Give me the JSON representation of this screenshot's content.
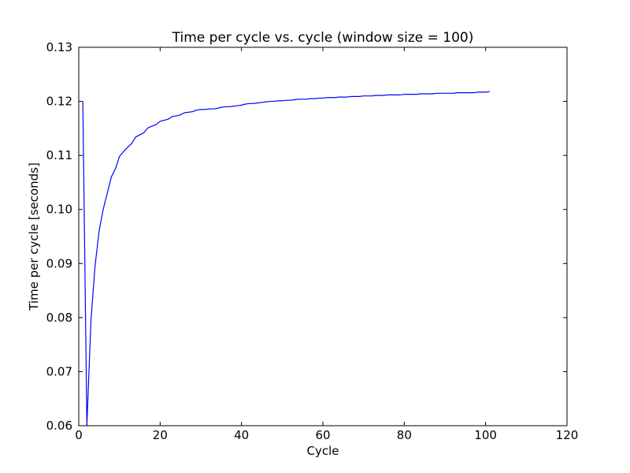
{
  "chart_data": {
    "type": "line",
    "title": "Time per cycle vs. cycle (window size = 100)",
    "xlabel": "Cycle",
    "ylabel": "Time per cycle [seconds]",
    "xlim": [
      0,
      120
    ],
    "ylim": [
      0.06,
      0.13
    ],
    "xticks": [
      0,
      20,
      40,
      60,
      80,
      100,
      120
    ],
    "yticks": [
      0.06,
      0.07,
      0.08,
      0.09,
      0.1,
      0.11,
      0.12,
      0.13
    ],
    "xtick_labels": [
      "0",
      "20",
      "40",
      "60",
      "80",
      "100",
      "120"
    ],
    "ytick_labels": [
      "0.06",
      "0.07",
      "0.08",
      "0.09",
      "0.10",
      "0.11",
      "0.12",
      "0.13"
    ],
    "grid": false,
    "line_color": "#0000ff",
    "series": [
      {
        "x": [
          1,
          2,
          3,
          4,
          5,
          6,
          7,
          8,
          9,
          10,
          11,
          12,
          13,
          14,
          15,
          16,
          17,
          18,
          19,
          20,
          21,
          22,
          23,
          24,
          25,
          26,
          27,
          28,
          29,
          30,
          31,
          32,
          33,
          34,
          35,
          36,
          37,
          38,
          39,
          40,
          41,
          42,
          43,
          44,
          45,
          46,
          47,
          48,
          49,
          50,
          51,
          52,
          53,
          54,
          55,
          56,
          57,
          58,
          59,
          60,
          61,
          62,
          63,
          64,
          65,
          66,
          67,
          68,
          69,
          70,
          71,
          72,
          73,
          74,
          75,
          76,
          77,
          78,
          79,
          80,
          81,
          82,
          83,
          84,
          85,
          86,
          87,
          88,
          89,
          90,
          91,
          92,
          93,
          94,
          95,
          96,
          97,
          98,
          99,
          100,
          101
        ],
        "values": [
          0.12,
          0.0595,
          0.0795,
          0.0895,
          0.096,
          0.1,
          0.103,
          0.106,
          0.1075,
          0.1098,
          0.1107,
          0.1115,
          0.1122,
          0.1134,
          0.1138,
          0.1142,
          0.1151,
          0.1154,
          0.1157,
          0.1163,
          0.1165,
          0.1167,
          0.1172,
          0.1173,
          0.1175,
          0.1179,
          0.118,
          0.1181,
          0.1184,
          0.1185,
          0.1185,
          0.1186,
          0.1186,
          0.1187,
          0.1189,
          0.119,
          0.119,
          0.1191,
          0.1192,
          0.1193,
          0.1195,
          0.1196,
          0.1196,
          0.1197,
          0.1198,
          0.1199,
          0.12,
          0.12,
          0.1201,
          0.1201,
          0.1202,
          0.1202,
          0.1203,
          0.1204,
          0.1204,
          0.1204,
          0.1205,
          0.1205,
          0.1206,
          0.1206,
          0.1207,
          0.1207,
          0.1207,
          0.1208,
          0.1208,
          0.1208,
          0.1209,
          0.1209,
          0.1209,
          0.121,
          0.121,
          0.121,
          0.1211,
          0.1211,
          0.1211,
          0.1212,
          0.1212,
          0.1212,
          0.1212,
          0.1213,
          0.1213,
          0.1213,
          0.1213,
          0.1214,
          0.1214,
          0.1214,
          0.1214,
          0.1215,
          0.1215,
          0.1215,
          0.1215,
          0.1215,
          0.1216,
          0.1216,
          0.1216,
          0.1216,
          0.1216,
          0.1217,
          0.1217,
          0.1217,
          0.1218
        ]
      }
    ]
  }
}
